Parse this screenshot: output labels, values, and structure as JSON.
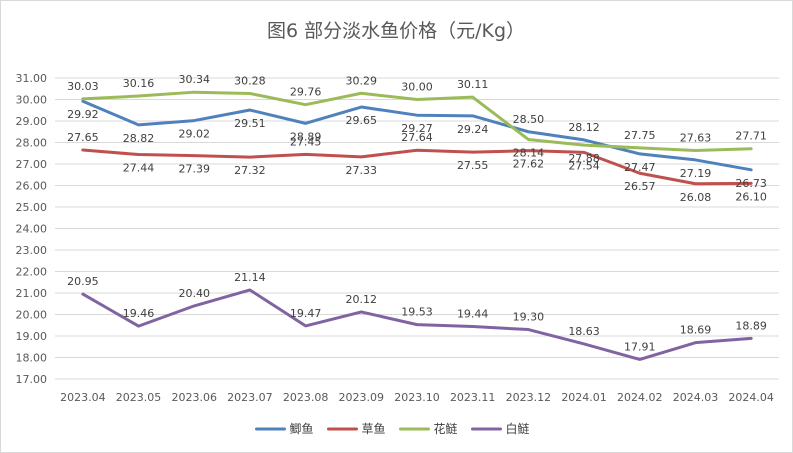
{
  "chart_data": {
    "type": "line",
    "title": "图6  部分淡水鱼价格（元/Kg）",
    "categories": [
      "2023.04",
      "2023.05",
      "2023.06",
      "2023.07",
      "2023.08",
      "2023.09",
      "2023.10",
      "2023.11",
      "2023.12",
      "2024.01",
      "2024.02",
      "2024.03",
      "2024.04"
    ],
    "ylim": [
      17,
      31
    ],
    "ytick_step": 1,
    "ytick_labels": [
      "17.00",
      "18.00",
      "19.00",
      "20.00",
      "21.00",
      "22.00",
      "23.00",
      "24.00",
      "25.00",
      "26.00",
      "27.00",
      "28.00",
      "29.00",
      "30.00",
      "31.00"
    ],
    "grid": true,
    "legend_position": "bottom",
    "series": [
      {
        "name": "鲫鱼",
        "color": "#4f81bd",
        "values": [
          29.92,
          28.82,
          29.02,
          29.51,
          28.89,
          29.65,
          29.27,
          29.24,
          28.5,
          28.12,
          27.47,
          27.19,
          26.73
        ],
        "labels": [
          "29.92",
          "28.82",
          "29.02",
          "29.51",
          "28.89",
          "29.65",
          "29.27",
          "29.24",
          "28.50",
          "28.12",
          "27.47",
          "27.19",
          "26.73"
        ]
      },
      {
        "name": "草鱼",
        "color": "#c0504d",
        "values": [
          27.65,
          27.44,
          27.39,
          27.32,
          27.45,
          27.33,
          27.64,
          27.55,
          27.62,
          27.54,
          26.57,
          26.08,
          26.1
        ],
        "labels": [
          "27.65",
          "27.44",
          "27.39",
          "27.32",
          "27.45",
          "27.33",
          "27.64",
          "27.55",
          "27.62",
          "27.54",
          "26.57",
          "26.08",
          "26.10"
        ]
      },
      {
        "name": "花鲢",
        "color": "#9bbb59",
        "values": [
          30.03,
          30.16,
          30.34,
          30.28,
          29.76,
          30.29,
          30.0,
          30.11,
          28.14,
          27.88,
          27.75,
          27.63,
          27.71
        ],
        "labels": [
          "30.03",
          "30.16",
          "30.34",
          "30.28",
          "29.76",
          "30.29",
          "30.00",
          "30.11",
          "28.14",
          "27.88",
          "27.75",
          "27.63",
          "27.71"
        ]
      },
      {
        "name": "白鲢",
        "color": "#8064a2",
        "values": [
          20.95,
          19.46,
          20.4,
          21.14,
          19.47,
          20.12,
          19.53,
          19.44,
          19.3,
          18.63,
          17.91,
          18.69,
          18.89
        ],
        "labels": [
          "20.95",
          "19.46",
          "20.40",
          "21.14",
          "19.47",
          "20.12",
          "19.53",
          "19.44",
          "19.30",
          "18.63",
          "17.91",
          "18.69",
          "18.89"
        ]
      }
    ]
  }
}
